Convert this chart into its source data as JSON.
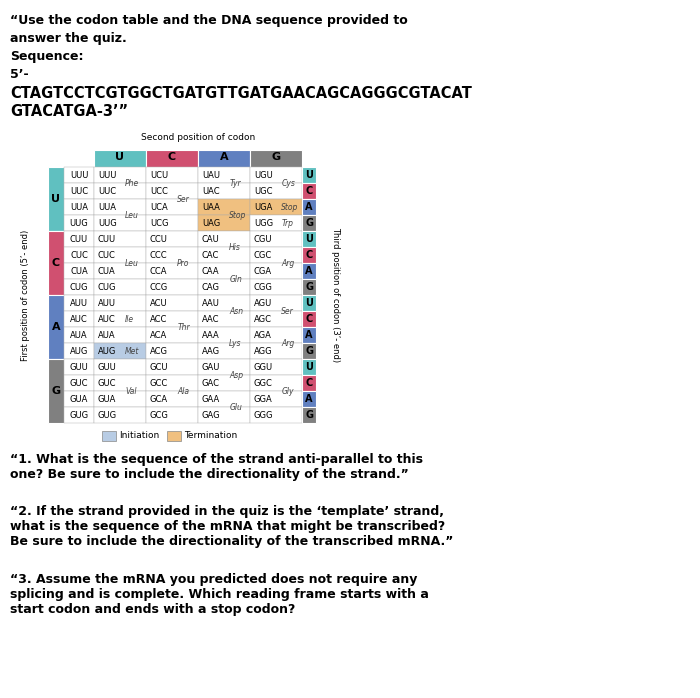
{
  "bg_color": "#ffffff",
  "header_lines": [
    "“Use the codon table and the DNA sequence provided to",
    "answer the quiz.",
    "Sequence:",
    "5’-",
    "CTAGTCCTCGTGGCTGATGTTGATGAACAGCAGGGCGTACAT",
    "GTACATGA-3’”"
  ],
  "q1": "“1. What is the sequence of the strand anti-parallel to this\none? Be sure to include the directionality of the strand.”",
  "q2": "“2. If the strand provided in the quiz is the ‘template’ strand,\nwhat is the sequence of the mRNA that might be transcribed?\nBe sure to include the directionality of the transcribed mRNA.”",
  "q3": "“3. Assume the mRNA you predicted does not require any\nsplicing and is complete. Which reading frame starts with a\nstart codon and ends with a stop codon?",
  "legend_initiation": "Initiation",
  "legend_termination": "Termination",
  "initiation_color": "#b8cce4",
  "termination_color": "#f0c080",
  "second_pos_label": "Second position of codon",
  "first_pos_label": "First position of codon (5’- end)",
  "third_pos_label": "Third position of codon (3’- end)",
  "col_colors": [
    "#60c0c0",
    "#d05070",
    "#6080c0",
    "#808080"
  ],
  "row_colors": [
    "#60c0c0",
    "#d05070",
    "#6080c0",
    "#808080"
  ],
  "third_colors": [
    "#60c0c0",
    "#d05070",
    "#6080c0",
    "#808080"
  ],
  "amino_acids": {
    "UUU": "Phe",
    "UUC": "Phe",
    "UUA": "Leu",
    "UUG": "Leu",
    "UCU": "Ser",
    "UCC": "Ser",
    "UCA": "Ser",
    "UCG": "Ser",
    "UAU": "Tyr",
    "UAC": "Tyr",
    "UAA": "Stop",
    "UAG": "Stop",
    "UGU": "Cys",
    "UGC": "Cys",
    "UGA": "Stop",
    "UGG": "Trp",
    "CUU": "Leu",
    "CUC": "Leu",
    "CUA": "Leu",
    "CUG": "Leu",
    "CCU": "Pro",
    "CCC": "Pro",
    "CCA": "Pro",
    "CCG": "Pro",
    "CAU": "His",
    "CAC": "His",
    "CAA": "Gln",
    "CAG": "Gln",
    "CGU": "Arg",
    "CGC": "Arg",
    "CGA": "Arg",
    "CGG": "Arg",
    "AUU": "Ile",
    "AUC": "Ile",
    "AUA": "Ile",
    "AUG": "Met",
    "ACU": "Thr",
    "ACC": "Thr",
    "ACA": "Thr",
    "ACG": "Thr",
    "AAU": "Asn",
    "AAC": "Asn",
    "AAA": "Lys",
    "AAG": "Lys",
    "AGU": "Ser",
    "AGC": "Ser",
    "AGA": "Arg",
    "AGG": "Arg",
    "GUU": "Val",
    "GUC": "Val",
    "GUA": "Val",
    "GUG": "Val",
    "GCU": "Ala",
    "GCC": "Ala",
    "GCA": "Ala",
    "GCG": "Ala",
    "GAU": "Asp",
    "GAC": "Asp",
    "GAA": "Glu",
    "GAG": "Glu",
    "GGU": "Gly",
    "GGC": "Gly",
    "GGA": "Gly",
    "GGG": "Gly"
  }
}
